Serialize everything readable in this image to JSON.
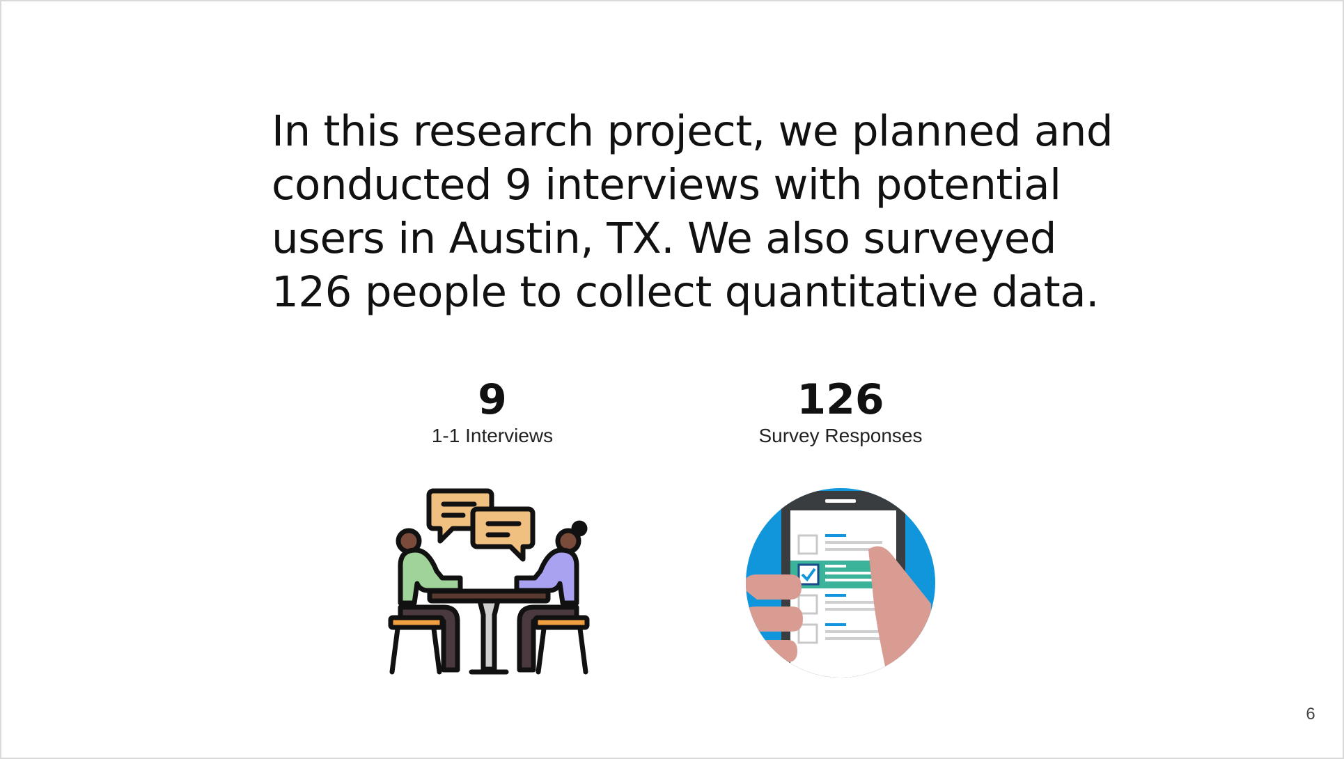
{
  "slide": {
    "body_lines": [
      "In this research project, we planned and",
      "conducted 9 interviews with potential",
      "users in Austin, TX. We also surveyed",
      "126 people to collect quantitative data."
    ],
    "stats": [
      {
        "value": "9",
        "label": "1-1 Interviews",
        "icon": "interview-meeting-icon"
      },
      {
        "value": "126",
        "label": "Survey Responses",
        "icon": "survey-phone-icon"
      }
    ],
    "page_number": "6"
  },
  "colors": {
    "text": "#111111",
    "speech_bubble": "#f0c080",
    "person_left_shirt": "#9fd39a",
    "person_right_shirt": "#a9a2f0",
    "survey_circle": "#1296db",
    "survey_highlight": "#3bb39b",
    "hand": "#d99c92"
  }
}
